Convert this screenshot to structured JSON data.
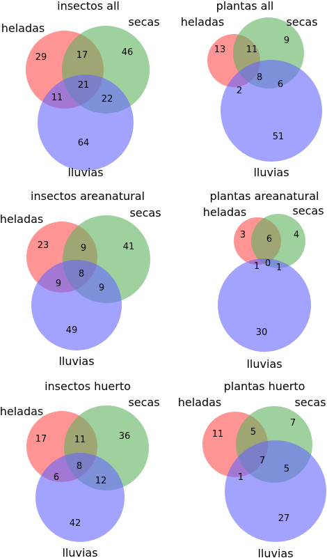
{
  "colors": {
    "heladas": "#ff6666",
    "secas": "#5fb35f",
    "lluvias": "#6666ff",
    "text": "#000000"
  },
  "diagrams": [
    {
      "title": "insectos all",
      "sets": {
        "heladas": "heladas",
        "secas": "secas",
        "lluvias": "lluvias"
      },
      "counts": {
        "h": "29",
        "s": "46",
        "l": "64",
        "hs": "17",
        "hl": "11",
        "sl": "22",
        "hsl": "21"
      }
    },
    {
      "title": "plantas all",
      "sets": {
        "heladas": "heladas",
        "secas": "secas",
        "lluvias": "lluvias"
      },
      "counts": {
        "h": "13",
        "s": "9",
        "l": "51",
        "hs": "11",
        "hl": "2",
        "sl": "6",
        "hsl": "8"
      }
    },
    {
      "title": "insectos areanatural",
      "sets": {
        "heladas": "heladas",
        "secas": "secas",
        "lluvias": "lluvias"
      },
      "counts": {
        "h": "23",
        "s": "41",
        "l": "49",
        "hs": "9",
        "hl": "9",
        "sl": "9",
        "hsl": "8"
      }
    },
    {
      "title": "plantas areanatural",
      "sets": {
        "heladas": "heladas",
        "secas": "secas",
        "lluvias": "lluvias"
      },
      "counts": {
        "h": "3",
        "s": "4",
        "l": "30",
        "hs": "6",
        "hl": "1",
        "sl": "1",
        "hsl": "0"
      }
    },
    {
      "title": "insectos huerto",
      "sets": {
        "heladas": "heladas",
        "secas": "secas",
        "lluvias": "lluvias"
      },
      "counts": {
        "h": "17",
        "s": "36",
        "l": "42",
        "hs": "11",
        "hl": "6",
        "sl": "12",
        "hsl": "8"
      }
    },
    {
      "title": "plantas huerto",
      "sets": {
        "heladas": "heladas",
        "secas": "secas",
        "lluvias": "lluvias"
      },
      "counts": {
        "h": "11",
        "s": "7",
        "l": "27",
        "hs": "5",
        "hl": "1",
        "sl": "5",
        "hsl": "7"
      }
    }
  ]
}
